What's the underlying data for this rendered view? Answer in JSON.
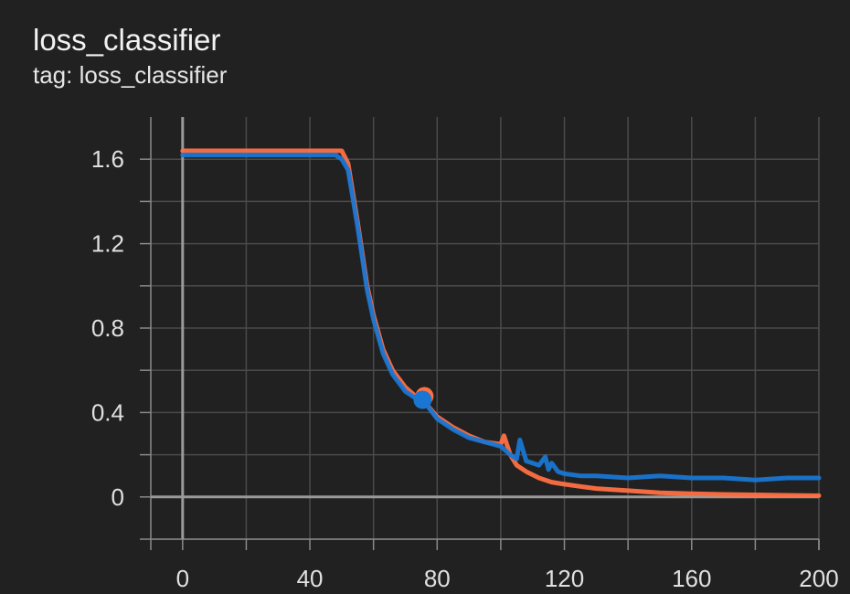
{
  "header": {
    "title": "loss_classifier",
    "subtitle": "tag: loss_classifier"
  },
  "colors": {
    "background": "#212121",
    "grid": "#4a4a4a",
    "axis": "#8a8a8a",
    "series_orange": "#ff7043",
    "series_blue": "#1976d2"
  },
  "chart_data": {
    "type": "line",
    "title": "loss_classifier",
    "xlim": [
      -10,
      200
    ],
    "ylim": [
      -0.2,
      1.8
    ],
    "xticks": [
      0,
      40,
      80,
      120,
      160,
      200
    ],
    "yticks": [
      0,
      0.4,
      0.8,
      1.2,
      1.6
    ],
    "ytick_labels": [
      "0",
      "0.4",
      "0.8",
      "1.2",
      "1.6"
    ],
    "grid": true,
    "hover_point": {
      "x": 76,
      "y": 0.46
    },
    "series": [
      {
        "color": "#ff7043",
        "x": [
          0,
          10,
          20,
          30,
          40,
          48,
          50,
          52,
          55,
          58,
          60,
          63,
          66,
          70,
          73,
          76,
          80,
          85,
          90,
          95,
          100,
          101,
          103,
          105,
          108,
          112,
          116,
          120,
          125,
          130,
          140,
          150,
          160,
          170,
          180,
          190,
          200
        ],
        "y": [
          1.64,
          1.64,
          1.64,
          1.64,
          1.64,
          1.64,
          1.64,
          1.58,
          1.3,
          1.0,
          0.86,
          0.7,
          0.6,
          0.52,
          0.48,
          0.45,
          0.38,
          0.33,
          0.29,
          0.26,
          0.25,
          0.29,
          0.2,
          0.15,
          0.12,
          0.09,
          0.07,
          0.06,
          0.05,
          0.04,
          0.03,
          0.02,
          0.015,
          0.012,
          0.01,
          0.008,
          0.006
        ]
      },
      {
        "color": "#1976d2",
        "x": [
          0,
          10,
          20,
          30,
          40,
          48,
          50,
          52,
          55,
          58,
          60,
          63,
          66,
          70,
          73,
          76,
          80,
          85,
          90,
          95,
          100,
          103,
          105,
          106,
          108,
          110,
          112,
          114,
          115,
          116,
          118,
          120,
          125,
          130,
          140,
          150,
          160,
          170,
          180,
          190,
          200
        ],
        "y": [
          1.62,
          1.62,
          1.62,
          1.62,
          1.62,
          1.62,
          1.6,
          1.55,
          1.28,
          0.98,
          0.84,
          0.68,
          0.58,
          0.5,
          0.47,
          0.45,
          0.37,
          0.32,
          0.28,
          0.26,
          0.24,
          0.2,
          0.18,
          0.27,
          0.17,
          0.16,
          0.15,
          0.19,
          0.13,
          0.16,
          0.12,
          0.11,
          0.1,
          0.1,
          0.09,
          0.1,
          0.09,
          0.09,
          0.08,
          0.09,
          0.09
        ]
      }
    ]
  }
}
